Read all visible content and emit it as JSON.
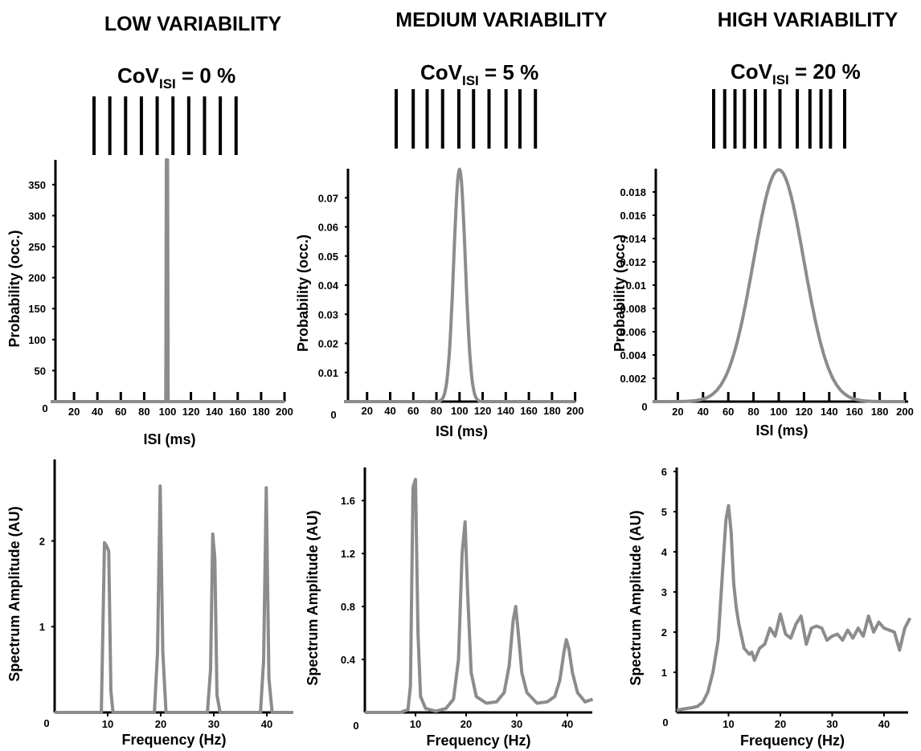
{
  "columns": [
    {
      "title": "LOW VARIABILITY",
      "cov_prefix": "CoV",
      "cov_sub": "ISI",
      "cov_suffix": " = 0 %",
      "spike_train_isi_ms": [
        20,
        20,
        20,
        20,
        20,
        20,
        20,
        20,
        20
      ]
    },
    {
      "title": "MEDIUM VARIABILITY",
      "cov_prefix": "CoV",
      "cov_sub": "ISI",
      "cov_suffix": " = 5 %",
      "spike_train_isi_ms": [
        22,
        18,
        20,
        21,
        19,
        20,
        22,
        18,
        20
      ]
    },
    {
      "title": "HIGH VARIABILITY",
      "cov_prefix": "CoV",
      "cov_sub": "ISI",
      "cov_suffix": " = 20 %",
      "spike_train_isi_ms": [
        14,
        13,
        12,
        14,
        12,
        19,
        22,
        16,
        14,
        12,
        18
      ]
    }
  ],
  "colors": {
    "curve": "#8c8c8c",
    "axis": "#000000",
    "spikes": "#000000"
  },
  "chart_data": [
    {
      "type": "line",
      "panel": "isi-low",
      "xlabel": "ISI (ms)",
      "ylabel": "Probability (occ.)",
      "xlim": [
        0,
        200
      ],
      "ylim": [
        0,
        390
      ],
      "xticks": [
        20,
        40,
        60,
        80,
        100,
        120,
        140,
        160,
        180,
        200
      ],
      "yticks": [
        50,
        100,
        150,
        200,
        250,
        300,
        350
      ],
      "yticklabels": [
        "50",
        "100",
        "150",
        "200",
        "250",
        "300",
        "350"
      ],
      "origin_label": "0",
      "series": [
        {
          "x": [
            0,
            97,
            98.5,
            99,
            100,
            100.5,
            102,
            200
          ],
          "y": [
            0,
            0,
            0,
            390,
            390,
            0,
            0,
            0
          ]
        }
      ]
    },
    {
      "type": "line",
      "panel": "isi-medium",
      "xlabel": "ISI (ms)",
      "ylabel": "Probability (occ.)",
      "xlim": [
        0,
        200
      ],
      "ylim": [
        0,
        0.08
      ],
      "xticks": [
        20,
        40,
        60,
        80,
        100,
        120,
        140,
        160,
        180,
        200
      ],
      "yticks": [
        0.01,
        0.02,
        0.03,
        0.04,
        0.05,
        0.06,
        0.07
      ],
      "yticklabels": [
        "0.01",
        "0.02",
        "0.03",
        "0.04",
        "0.05",
        "0.06",
        "0.07"
      ],
      "origin_label": "0",
      "gaussian": {
        "mean": 100,
        "sd": 5,
        "peak": 0.0798
      }
    },
    {
      "type": "line",
      "panel": "isi-high",
      "xlabel": "ISI (ms)",
      "ylabel": "Probability (occ.)",
      "xlim": [
        0,
        200
      ],
      "ylim": [
        0,
        0.02
      ],
      "xticks": [
        20,
        40,
        60,
        80,
        100,
        120,
        140,
        160,
        180,
        200
      ],
      "yticks": [
        0.002,
        0.004,
        0.006,
        0.008,
        0.01,
        0.012,
        0.014,
        0.016,
        0.018
      ],
      "yticklabels": [
        "0.002",
        "0.004",
        "0.006",
        "0.008",
        "0.01",
        "0.012",
        "0.014",
        "0.016",
        "0.018"
      ],
      "origin_label": "0",
      "gaussian": {
        "mean": 100,
        "sd": 20,
        "peak": 0.0199
      }
    },
    {
      "type": "line",
      "panel": "spectrum-low",
      "xlabel": "Frequency (Hz)",
      "ylabel": "Spectrum Amplitude (AU)",
      "xlim": [
        0,
        45
      ],
      "ylim": [
        0,
        2.95
      ],
      "xticks": [
        10,
        20,
        30,
        40
      ],
      "xticklabels": [
        "10",
        "20",
        "30",
        "40"
      ],
      "yticks": [
        1,
        2
      ],
      "yticklabels": [
        "1",
        "2"
      ],
      "origin_label": "0",
      "series": [
        {
          "x": [
            0,
            8.8,
            9.4,
            9.8,
            10.2,
            10.6,
            11,
            18.8,
            19.4,
            19.9,
            20.4,
            21,
            28.8,
            29.4,
            29.8,
            30.2,
            30.6,
            31.2,
            38.8,
            39.4,
            39.9,
            40.4,
            41,
            45
          ],
          "y": [
            0,
            0,
            1.98,
            1.94,
            1.88,
            0.25,
            0,
            0,
            0.7,
            2.64,
            0.7,
            0,
            0,
            0.5,
            2.08,
            1.8,
            0.2,
            0,
            0,
            0.6,
            2.62,
            0.4,
            0,
            0
          ]
        }
      ]
    },
    {
      "type": "line",
      "panel": "spectrum-medium",
      "xlabel": "Frequency (Hz)",
      "ylabel": "Spectrum Amplitude (AU)",
      "xlim": [
        0,
        45
      ],
      "ylim": [
        0,
        1.85
      ],
      "xticks": [
        10,
        20,
        30,
        40
      ],
      "xticklabels": [
        "10",
        "20",
        "30",
        "40"
      ],
      "yticks": [
        0.4,
        0.8,
        1.2,
        1.6
      ],
      "yticklabels": [
        "0.4",
        "0.8",
        "1.2",
        "1.6"
      ],
      "origin_label": "0",
      "series": [
        {
          "x": [
            0,
            7,
            8.5,
            9,
            9.5,
            10,
            10.5,
            11,
            12,
            14,
            16,
            17.5,
            18.5,
            19.2,
            19.8,
            20.3,
            21,
            22,
            24,
            26,
            27.5,
            28.5,
            29.3,
            29.8,
            30.3,
            31,
            32,
            34,
            36,
            37.5,
            38.5,
            39.3,
            39.8,
            40.3,
            41,
            42,
            43.5,
            45
          ],
          "y": [
            0,
            0,
            0.02,
            0.2,
            1.7,
            1.76,
            0.6,
            0.12,
            0.03,
            0.01,
            0.03,
            0.1,
            0.4,
            1.2,
            1.44,
            0.9,
            0.3,
            0.12,
            0.07,
            0.08,
            0.15,
            0.35,
            0.7,
            0.8,
            0.6,
            0.3,
            0.15,
            0.07,
            0.08,
            0.12,
            0.24,
            0.45,
            0.55,
            0.48,
            0.3,
            0.15,
            0.08,
            0.1
          ]
        }
      ]
    },
    {
      "type": "line",
      "panel": "spectrum-high",
      "xlabel": "Frequency (Hz)",
      "ylabel": "Spectrum Amplitude (AU)",
      "xlim": [
        0,
        45
      ],
      "ylim": [
        0,
        6.1
      ],
      "xticks": [
        10,
        20,
        30,
        40
      ],
      "xticklabels": [
        "10",
        "20",
        "30",
        "40"
      ],
      "yticks": [
        1,
        2,
        3,
        4,
        5,
        6
      ],
      "yticklabels": [
        "1",
        "2",
        "3",
        "4",
        "5",
        "6"
      ],
      "origin_label": "0",
      "series": [
        {
          "x": [
            0,
            1,
            2,
            3,
            4,
            5,
            6,
            7,
            8,
            9,
            9.5,
            10,
            10.5,
            11,
            11.5,
            12,
            13,
            14,
            14.5,
            15,
            16,
            17,
            18,
            19,
            20,
            21,
            22,
            23,
            24,
            25,
            26,
            27,
            28,
            29,
            30,
            31,
            32,
            33,
            34,
            35,
            36,
            37,
            38,
            39,
            40,
            41,
            42,
            43,
            44,
            45
          ],
          "y": [
            0.05,
            0.08,
            0.1,
            0.12,
            0.15,
            0.25,
            0.5,
            1.0,
            1.8,
            3.8,
            4.8,
            5.15,
            4.5,
            3.2,
            2.6,
            2.2,
            1.6,
            1.45,
            1.5,
            1.3,
            1.6,
            1.7,
            2.1,
            1.9,
            2.45,
            1.95,
            1.85,
            2.2,
            2.4,
            1.7,
            2.1,
            2.15,
            2.1,
            1.8,
            1.9,
            1.95,
            1.8,
            2.05,
            1.85,
            2.1,
            1.9,
            2.4,
            2.0,
            2.25,
            2.1,
            2.05,
            2.0,
            1.55,
            2.1,
            2.35
          ]
        }
      ]
    }
  ]
}
